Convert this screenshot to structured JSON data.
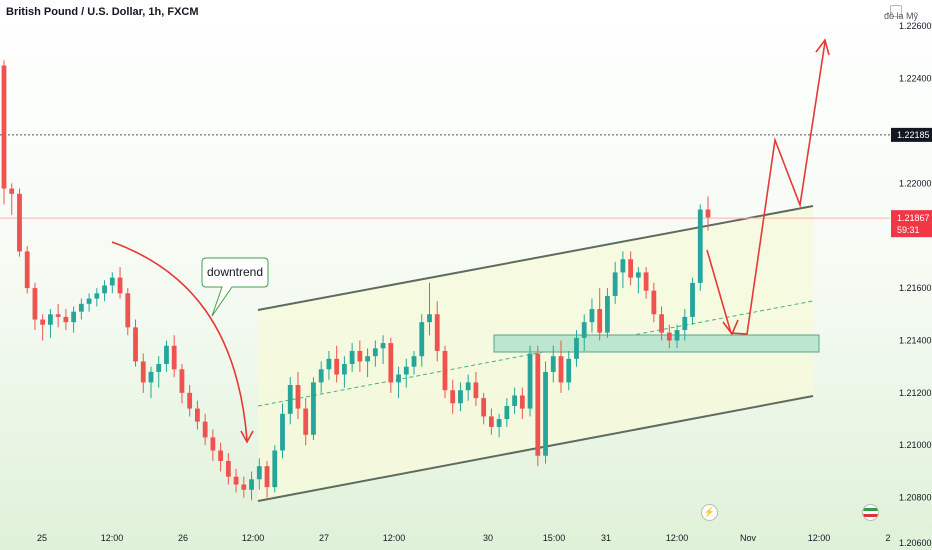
{
  "header": {
    "title": "British Pound / U.S. Dollar, 1h, FXCM",
    "currency_label": "đô la Mỹ"
  },
  "colors": {
    "up": "#26a69a",
    "down": "#ef5350",
    "arrow": "#e53935",
    "channel": "#5f6b5f",
    "channel_fill": "#f6f9dc",
    "zone_fill": "#bde6d1",
    "zone_border": "#53a58a",
    "current_price_badge": "#f23645",
    "marked_price_badge": "#131722",
    "current_price_line": "#f0b5ad",
    "marked_price_line": "#555555"
  },
  "chart_data": {
    "type": "candlestick",
    "title": "British Pound / U.S. Dollar, 1h, FXCM",
    "y_axis": {
      "side": "right",
      "ticks": [
        "1.22600",
        "1.22400",
        "1.22000",
        "1.21600",
        "1.21400",
        "1.21200",
        "1.21000",
        "1.20800",
        "1.20600"
      ],
      "ylim": [
        1.206,
        1.227
      ]
    },
    "x_axis": {
      "ticks": [
        "25",
        "12:00",
        "26",
        "12:00",
        "27",
        "12:00",
        "30",
        "15:00",
        "31",
        "12:00",
        "Nov",
        "12:00",
        "2"
      ]
    },
    "current_price": {
      "value": "1.21867",
      "countdown": "59:31"
    },
    "marked_price": {
      "value": "1.22185"
    },
    "annotations": {
      "callout": "downtrend"
    },
    "candles_approx": [
      [
        1.2245,
        1.2247,
        1.2192,
        1.2198
      ],
      [
        1.2198,
        1.22,
        1.2188,
        1.2196
      ],
      [
        1.2196,
        1.2198,
        1.2172,
        1.2174
      ],
      [
        1.2174,
        1.2176,
        1.2158,
        1.216
      ],
      [
        1.216,
        1.2162,
        1.2144,
        1.2148
      ],
      [
        1.2148,
        1.215,
        1.214,
        1.2146
      ],
      [
        1.2146,
        1.2152,
        1.2141,
        1.215
      ],
      [
        1.215,
        1.2154,
        1.2145,
        1.2149
      ],
      [
        1.2149,
        1.2152,
        1.2144,
        1.2147
      ],
      [
        1.2147,
        1.2153,
        1.2143,
        1.2151
      ],
      [
        1.2151,
        1.2156,
        1.2148,
        1.2154
      ],
      [
        1.2154,
        1.2158,
        1.2151,
        1.2156
      ],
      [
        1.2156,
        1.216,
        1.2153,
        1.2158
      ],
      [
        1.2158,
        1.2163,
        1.2155,
        1.2161
      ],
      [
        1.2161,
        1.2166,
        1.2158,
        1.2164
      ],
      [
        1.2164,
        1.2168,
        1.2156,
        1.2158
      ],
      [
        1.2158,
        1.216,
        1.2142,
        1.2145
      ],
      [
        1.2145,
        1.2148,
        1.213,
        1.2132
      ],
      [
        1.2132,
        1.2135,
        1.212,
        1.2124
      ],
      [
        1.2124,
        1.213,
        1.2118,
        1.2128
      ],
      [
        1.2128,
        1.2134,
        1.2122,
        1.2131
      ],
      [
        1.2131,
        1.214,
        1.2128,
        1.2138
      ],
      [
        1.2138,
        1.2142,
        1.2126,
        1.2129
      ],
      [
        1.2129,
        1.2131,
        1.2116,
        1.212
      ],
      [
        1.212,
        1.2123,
        1.2111,
        1.2114
      ],
      [
        1.2114,
        1.2117,
        1.2106,
        1.2109
      ],
      [
        1.2109,
        1.2112,
        1.21,
        1.2103
      ],
      [
        1.2103,
        1.2106,
        1.2094,
        1.2098
      ],
      [
        1.2098,
        1.2101,
        1.209,
        1.2094
      ],
      [
        1.2094,
        1.2097,
        1.2085,
        1.2088
      ],
      [
        1.2088,
        1.2091,
        1.2082,
        1.2085
      ],
      [
        1.2085,
        1.2088,
        1.208,
        1.2083
      ],
      [
        1.2083,
        1.209,
        1.2079,
        1.2087
      ],
      [
        1.2087,
        1.2095,
        1.2083,
        1.2092
      ],
      [
        1.2092,
        1.2094,
        1.208,
        1.2084
      ],
      [
        1.2084,
        1.21,
        1.2082,
        1.2098
      ],
      [
        1.2098,
        1.2116,
        1.2095,
        1.2112
      ],
      [
        1.2112,
        1.2126,
        1.2108,
        1.2123
      ],
      [
        1.2123,
        1.2128,
        1.211,
        1.2114
      ],
      [
        1.2114,
        1.2118,
        1.21,
        1.2104
      ],
      [
        1.2104,
        1.2126,
        1.2102,
        1.2124
      ],
      [
        1.2124,
        1.2132,
        1.212,
        1.2129
      ],
      [
        1.2129,
        1.2136,
        1.2125,
        1.2133
      ],
      [
        1.2133,
        1.2138,
        1.2124,
        1.2127
      ],
      [
        1.2127,
        1.2134,
        1.2122,
        1.2131
      ],
      [
        1.2131,
        1.2139,
        1.2128,
        1.2136
      ],
      [
        1.2136,
        1.214,
        1.2128,
        1.2132
      ],
      [
        1.2132,
        1.2137,
        1.2126,
        1.2134
      ],
      [
        1.2134,
        1.214,
        1.213,
        1.2137
      ],
      [
        1.2137,
        1.2142,
        1.2131,
        1.2139
      ],
      [
        1.2139,
        1.2141,
        1.212,
        1.2124
      ],
      [
        1.2124,
        1.213,
        1.2118,
        1.2127
      ],
      [
        1.2127,
        1.2133,
        1.2122,
        1.213
      ],
      [
        1.213,
        1.2136,
        1.2127,
        1.2134
      ],
      [
        1.2134,
        1.215,
        1.213,
        1.2147
      ],
      [
        1.2147,
        1.2162,
        1.2142,
        1.215
      ],
      [
        1.215,
        1.2155,
        1.2132,
        1.2136
      ],
      [
        1.2136,
        1.2138,
        1.2118,
        1.2121
      ],
      [
        1.2121,
        1.2125,
        1.2112,
        1.2116
      ],
      [
        1.2116,
        1.2124,
        1.2113,
        1.2121
      ],
      [
        1.2121,
        1.2127,
        1.2117,
        1.2124
      ],
      [
        1.2124,
        1.2128,
        1.2115,
        1.2118
      ],
      [
        1.2118,
        1.212,
        1.2108,
        1.2111
      ],
      [
        1.2111,
        1.2114,
        1.2104,
        1.2107
      ],
      [
        1.2107,
        1.2112,
        1.2103,
        1.211
      ],
      [
        1.211,
        1.2118,
        1.2107,
        1.2115
      ],
      [
        1.2115,
        1.2122,
        1.2112,
        1.2119
      ],
      [
        1.2119,
        1.2122,
        1.211,
        1.2114
      ],
      [
        1.2114,
        1.2138,
        1.2111,
        1.2135
      ],
      [
        1.2135,
        1.2138,
        1.2092,
        1.2096
      ],
      [
        1.2096,
        1.2132,
        1.2093,
        1.2128
      ],
      [
        1.2128,
        1.2138,
        1.2124,
        1.2134
      ],
      [
        1.2134,
        1.214,
        1.212,
        1.2124
      ],
      [
        1.2124,
        1.2136,
        1.2121,
        1.2133
      ],
      [
        1.2133,
        1.2144,
        1.213,
        1.2141
      ],
      [
        1.2141,
        1.215,
        1.2136,
        1.2147
      ],
      [
        1.2147,
        1.2156,
        1.2143,
        1.2152
      ],
      [
        1.2152,
        1.216,
        1.214,
        1.2143
      ],
      [
        1.2143,
        1.216,
        1.2141,
        1.2157
      ],
      [
        1.2157,
        1.217,
        1.2154,
        1.2166
      ],
      [
        1.2166,
        1.2174,
        1.216,
        1.2171
      ],
      [
        1.2171,
        1.2174,
        1.2161,
        1.2164
      ],
      [
        1.2164,
        1.2168,
        1.2158,
        1.2166
      ],
      [
        1.2166,
        1.2168,
        1.2156,
        1.2159
      ],
      [
        1.2159,
        1.2162,
        1.2147,
        1.215
      ],
      [
        1.215,
        1.2153,
        1.214,
        1.2143
      ],
      [
        1.2143,
        1.2146,
        1.2137,
        1.214
      ],
      [
        1.214,
        1.2146,
        1.2137,
        1.2144
      ],
      [
        1.2144,
        1.2152,
        1.214,
        1.2149
      ],
      [
        1.2149,
        1.2164,
        1.2146,
        1.2162
      ],
      [
        1.2162,
        1.2192,
        1.2159,
        1.219
      ],
      [
        1.219,
        1.2195,
        1.2182,
        1.2187
      ]
    ]
  }
}
